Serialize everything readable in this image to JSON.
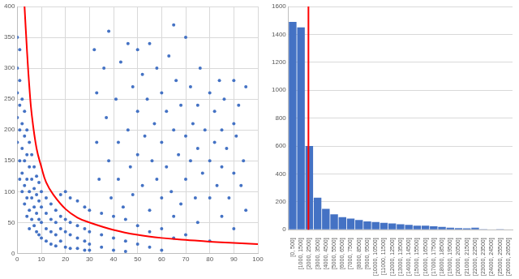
{
  "chart_data": [
    {
      "type": "scatter",
      "xlim": [
        0,
        100
      ],
      "xticks": [
        0,
        10,
        20,
        30,
        40,
        50,
        60,
        70,
        80,
        90,
        100
      ],
      "ylim": [
        0,
        400
      ],
      "yticks": [
        0,
        50,
        100,
        150,
        200,
        250,
        300,
        350,
        400
      ],
      "grid": true,
      "series": [
        {
          "type": "scatter",
          "color": "#4472c4",
          "marker": "circle",
          "x": [
            0,
            0,
            0,
            0,
            0,
            1,
            1,
            1,
            1,
            1,
            1,
            2,
            2,
            2,
            2,
            2,
            3,
            3,
            3,
            3,
            3,
            4,
            4,
            4,
            4,
            4,
            5,
            5,
            5,
            5,
            5,
            6,
            6,
            6,
            6,
            7,
            7,
            7,
            7,
            8,
            8,
            8,
            8,
            9,
            9,
            9,
            9,
            10,
            10,
            10,
            10,
            12,
            12,
            12,
            12,
            14,
            14,
            14,
            14,
            16,
            16,
            16,
            16,
            18,
            18,
            18,
            18,
            20,
            20,
            20,
            20,
            22,
            22,
            22,
            22,
            25,
            25,
            25,
            25,
            28,
            28,
            28,
            28,
            30,
            30,
            30,
            30,
            32,
            33,
            33,
            34,
            35,
            35,
            35,
            36,
            37,
            38,
            38,
            39,
            40,
            40,
            40,
            41,
            42,
            42,
            43,
            44,
            45,
            45,
            45,
            46,
            46,
            47,
            48,
            48,
            50,
            50,
            50,
            50,
            50,
            52,
            52,
            53,
            54,
            55,
            55,
            55,
            55,
            56,
            57,
            58,
            58,
            60,
            60,
            60,
            60,
            60,
            62,
            62,
            63,
            64,
            65,
            65,
            65,
            65,
            66,
            67,
            68,
            68,
            70,
            70,
            70,
            70,
            72,
            72,
            73,
            74,
            75,
            75,
            75,
            76,
            77,
            78,
            80,
            80,
            80,
            80,
            82,
            82,
            83,
            84,
            85,
            85,
            85,
            86,
            87,
            88,
            90,
            90,
            90,
            90,
            91,
            92,
            93,
            94,
            95,
            95
          ],
          "values": [
            350,
            300,
            260,
            220,
            180,
            330,
            280,
            240,
            200,
            150,
            120,
            250,
            210,
            170,
            130,
            100,
            230,
            190,
            150,
            110,
            80,
            200,
            160,
            120,
            90,
            60,
            180,
            140,
            100,
            70,
            40,
            160,
            120,
            90,
            55,
            140,
            105,
            75,
            45,
            125,
            95,
            65,
            35,
            115,
            85,
            55,
            30,
            100,
            75,
            50,
            25,
            90,
            65,
            40,
            20,
            80,
            55,
            35,
            15,
            70,
            50,
            30,
            12,
            95,
            60,
            40,
            20,
            100,
            55,
            35,
            10,
            90,
            50,
            30,
            8,
            85,
            45,
            25,
            8,
            75,
            40,
            20,
            5,
            70,
            35,
            15,
            5,
            330,
            260,
            180,
            120,
            65,
            30,
            10,
            300,
            220,
            150,
            360,
            90,
            60,
            25,
            5,
            250,
            180,
            120,
            310,
            75,
            55,
            20,
            3,
            340,
            200,
            140,
            270,
            95,
            330,
            230,
            160,
            45,
            15,
            290,
            110,
            190,
            250,
            340,
            70,
            35,
            10,
            150,
            210,
            300,
            120,
            260,
            180,
            90,
            40,
            5,
            230,
            140,
            320,
            100,
            370,
            200,
            60,
            25,
            280,
            160,
            240,
            80,
            350,
            190,
            120,
            30,
            270,
            150,
            210,
            90,
            240,
            170,
            50,
            300,
            130,
            200,
            260,
            150,
            90,
            20,
            230,
            180,
            110,
            280,
            200,
            140,
            60,
            250,
            170,
            90,
            280,
            210,
            130,
            40,
            190,
            240,
            110,
            150,
            270,
            70
          ]
        },
        {
          "type": "line",
          "color": "#ff0000",
          "line_style": "solid",
          "x": [
            3,
            4,
            5,
            6,
            8,
            10,
            12,
            15,
            20,
            25,
            30,
            40,
            50,
            60,
            70,
            80,
            90,
            100
          ],
          "values": [
            400,
            330,
            270,
            225,
            170,
            140,
            115,
            95,
            72,
            58,
            50,
            38,
            30,
            25,
            22,
            19,
            17,
            15
          ]
        }
      ]
    },
    {
      "type": "bar",
      "categories": [
        "[0, 500]",
        "[1000, 1500]",
        "[2000, 2500]",
        "[3000, 3500]",
        "[4000, 4500]",
        "[5000, 5500]",
        "[6000, 6500]",
        "[7000, 7500]",
        "[8000, 8500]",
        "[9000, 9500]",
        "[10000, 10500]",
        "[11000, 11500]",
        "[12000, 12500]",
        "[13000, 13500]",
        "[14000, 14500]",
        "[15000, 15500]",
        "[16000, 16500]",
        "[17000, 17500]",
        "[18000, 18500]",
        "[19000, 19500]",
        "[20000, 20500]",
        "[21000, 21500]",
        "[22000, 22500]",
        "[23000, 23500]",
        "[24000, 24500]",
        "[25000, 25500]",
        "[26000, 26500]"
      ],
      "values": [
        1490,
        1450,
        600,
        230,
        150,
        110,
        90,
        80,
        70,
        60,
        55,
        50,
        45,
        40,
        35,
        30,
        30,
        25,
        20,
        15,
        12,
        10,
        15,
        5,
        3,
        2,
        0
      ],
      "color": "#4472c4",
      "ylim": [
        0,
        1600
      ],
      "yticks": [
        0,
        200,
        400,
        600,
        800,
        1000,
        1200,
        1400,
        1600
      ],
      "grid": true,
      "vline": {
        "x": 1.9,
        "color": "#ff0000"
      }
    }
  ]
}
